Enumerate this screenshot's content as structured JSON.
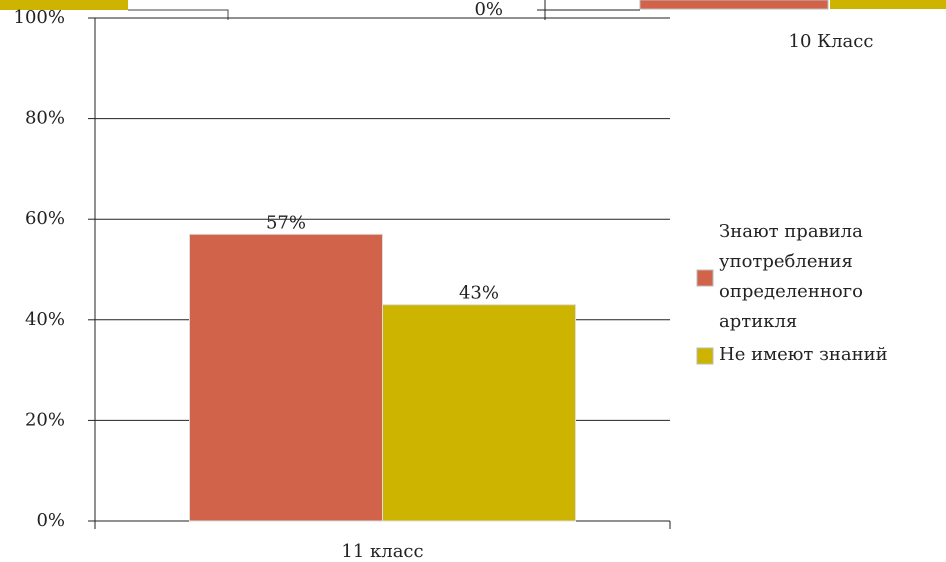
{
  "chart_data": [
    {
      "type": "bar",
      "categories": [
        "11 класс"
      ],
      "series": [
        {
          "name": "Знают правила употребления определенного артикля",
          "color": "#d0634a",
          "values": [
            57
          ],
          "value_labels": [
            "57%"
          ]
        },
        {
          "name": "Не имеют знаний",
          "color": "#cdb400",
          "values": [
            43
          ],
          "value_labels": [
            "43%"
          ]
        }
      ],
      "ylim": [
        0,
        100
      ],
      "yticks": [
        {
          "value": 0,
          "label": "0%"
        },
        {
          "value": 20,
          "label": "20%"
        },
        {
          "value": 40,
          "label": "40%"
        },
        {
          "value": 60,
          "label": "60%"
        },
        {
          "value": 80,
          "label": "80%"
        },
        {
          "value": 100,
          "label": "100%"
        }
      ],
      "grid": true,
      "legend": "right"
    },
    {
      "type": "bar",
      "categories": [
        "10 Класс"
      ],
      "yticks": [
        {
          "value": 0,
          "label": "0%"
        }
      ]
    }
  ]
}
